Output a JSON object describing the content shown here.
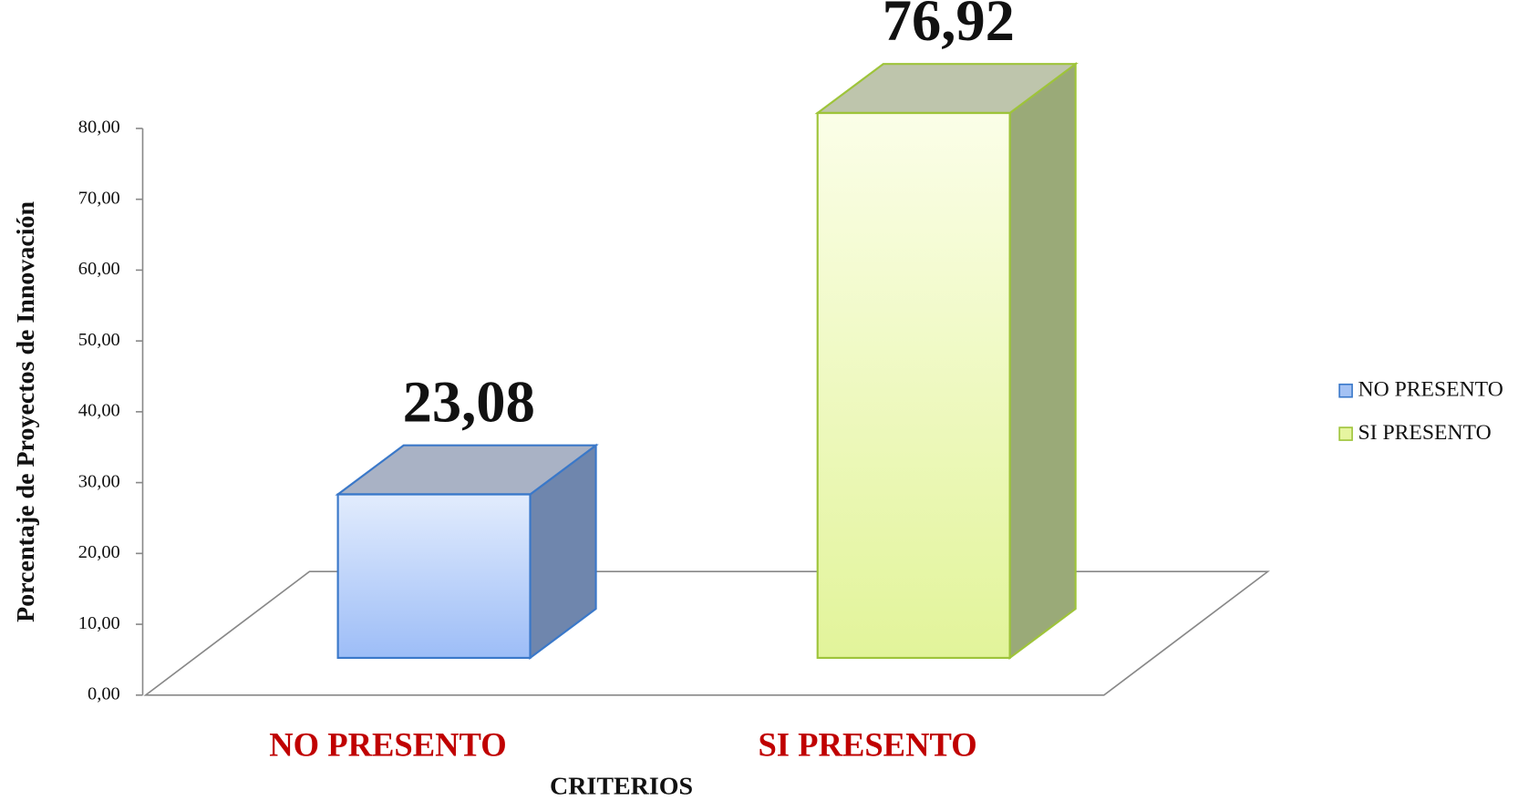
{
  "chart_data": {
    "type": "bar3d",
    "categories": [
      "NO PRESENTO",
      "SI PRESENTO"
    ],
    "values": [
      23.08,
      76.92
    ],
    "value_labels": [
      "23,08",
      "76,92"
    ],
    "colors": [
      "#a4c2f4",
      "#e6f5a0"
    ],
    "ylim": [
      0,
      80
    ],
    "yticks": [
      {
        "value": 0,
        "label": "0,00"
      },
      {
        "value": 10,
        "label": "10,00"
      },
      {
        "value": 20,
        "label": "20,00"
      },
      {
        "value": 30,
        "label": "30,00"
      },
      {
        "value": 40,
        "label": "40,00"
      },
      {
        "value": 50,
        "label": "50,00"
      },
      {
        "value": 60,
        "label": "60,00"
      },
      {
        "value": 70,
        "label": "70,00"
      },
      {
        "value": 80,
        "label": "80,00"
      }
    ],
    "y_label": "Porcentaje de Proyectos de Innovación",
    "x_label": "CRITERIOS",
    "legend": "right"
  }
}
